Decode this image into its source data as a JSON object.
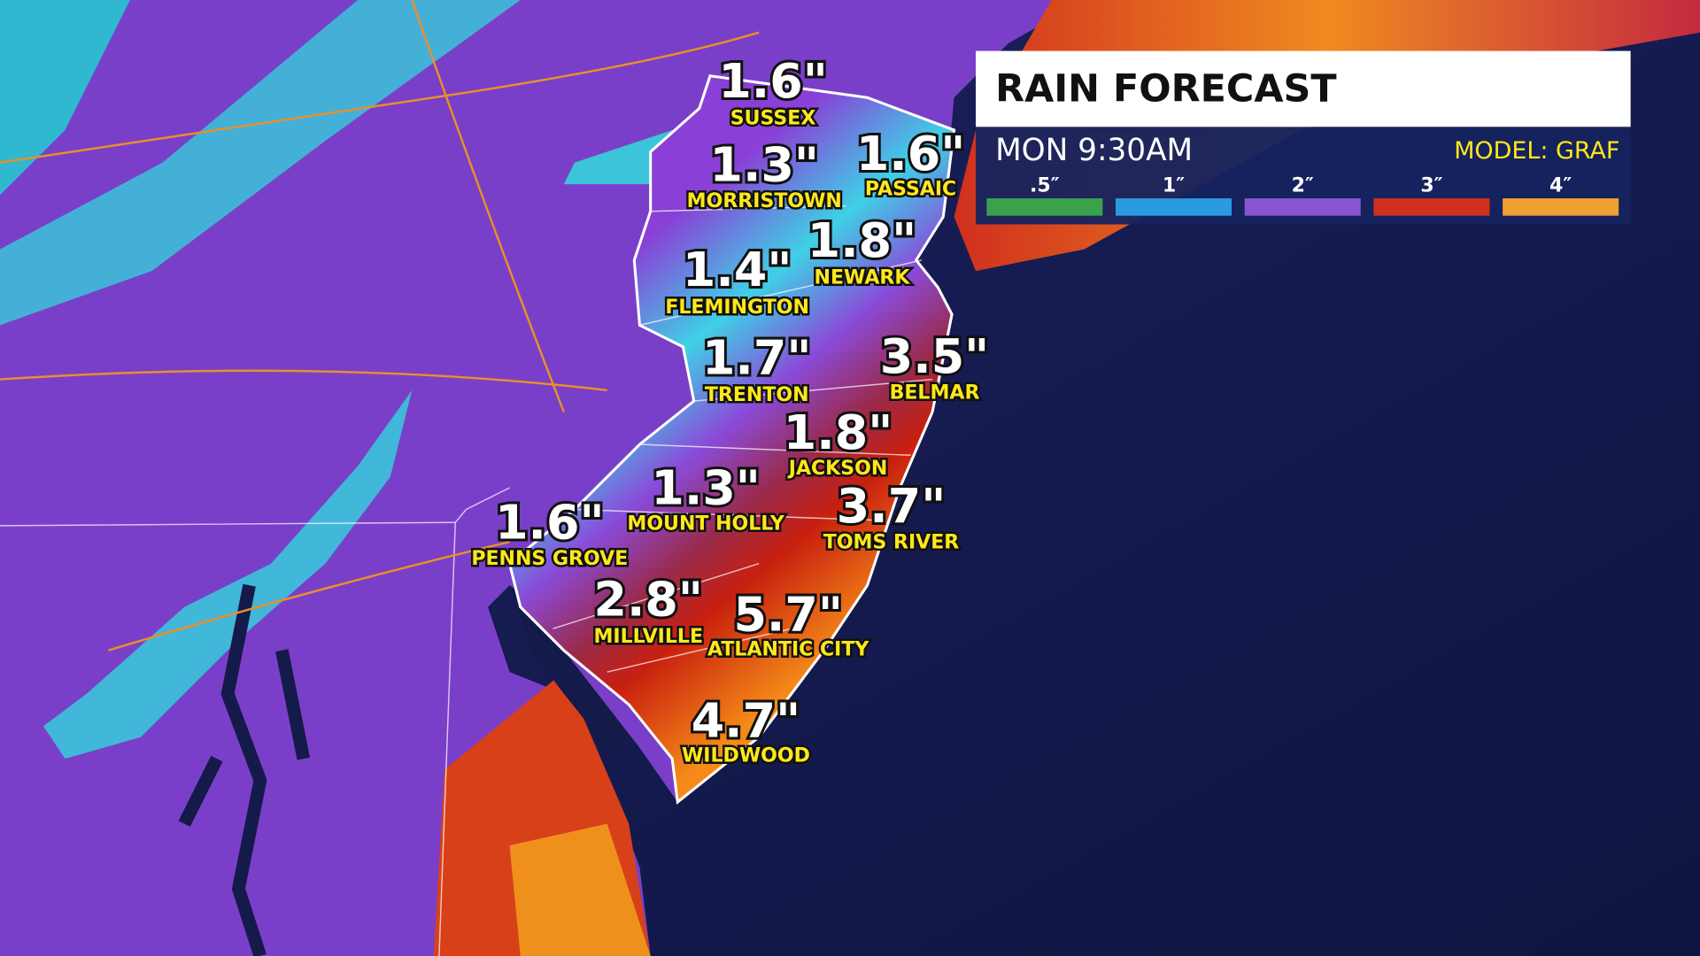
{
  "header": {
    "title": "RAIN FORECAST",
    "time": "MON 9:30AM",
    "model": "MODEL: GRAF"
  },
  "legend": [
    {
      "label": ".5″",
      "color": "#3aa24a"
    },
    {
      "label": "1″",
      "color": "#2a9be0"
    },
    {
      "label": "2″",
      "color": "#8a55d0"
    },
    {
      "label": "3″",
      "color": "#d0301e"
    },
    {
      "label": "4″",
      "color": "#f0a030"
    }
  ],
  "cities": [
    {
      "amount": "1.6\"",
      "name": "SUSSEX"
    },
    {
      "amount": "1.3\"",
      "name": "MORRISTOWN"
    },
    {
      "amount": "1.6\"",
      "name": "PASSAIC"
    },
    {
      "amount": "1.8\"",
      "name": "NEWARK"
    },
    {
      "amount": "1.4\"",
      "name": "FLEMINGTON"
    },
    {
      "amount": "1.7\"",
      "name": "TRENTON"
    },
    {
      "amount": "3.5\"",
      "name": "BELMAR"
    },
    {
      "amount": "1.8\"",
      "name": "JACKSON"
    },
    {
      "amount": "1.3\"",
      "name": "MOUNT HOLLY"
    },
    {
      "amount": "3.7\"",
      "name": "TOMS RIVER"
    },
    {
      "amount": "1.6\"",
      "name": "PENNS GROVE"
    },
    {
      "amount": "2.8\"",
      "name": "MILLVILLE"
    },
    {
      "amount": "5.7\"",
      "name": "ATLANTIC CITY"
    },
    {
      "amount": "4.7\"",
      "name": "WILDWOOD"
    }
  ]
}
